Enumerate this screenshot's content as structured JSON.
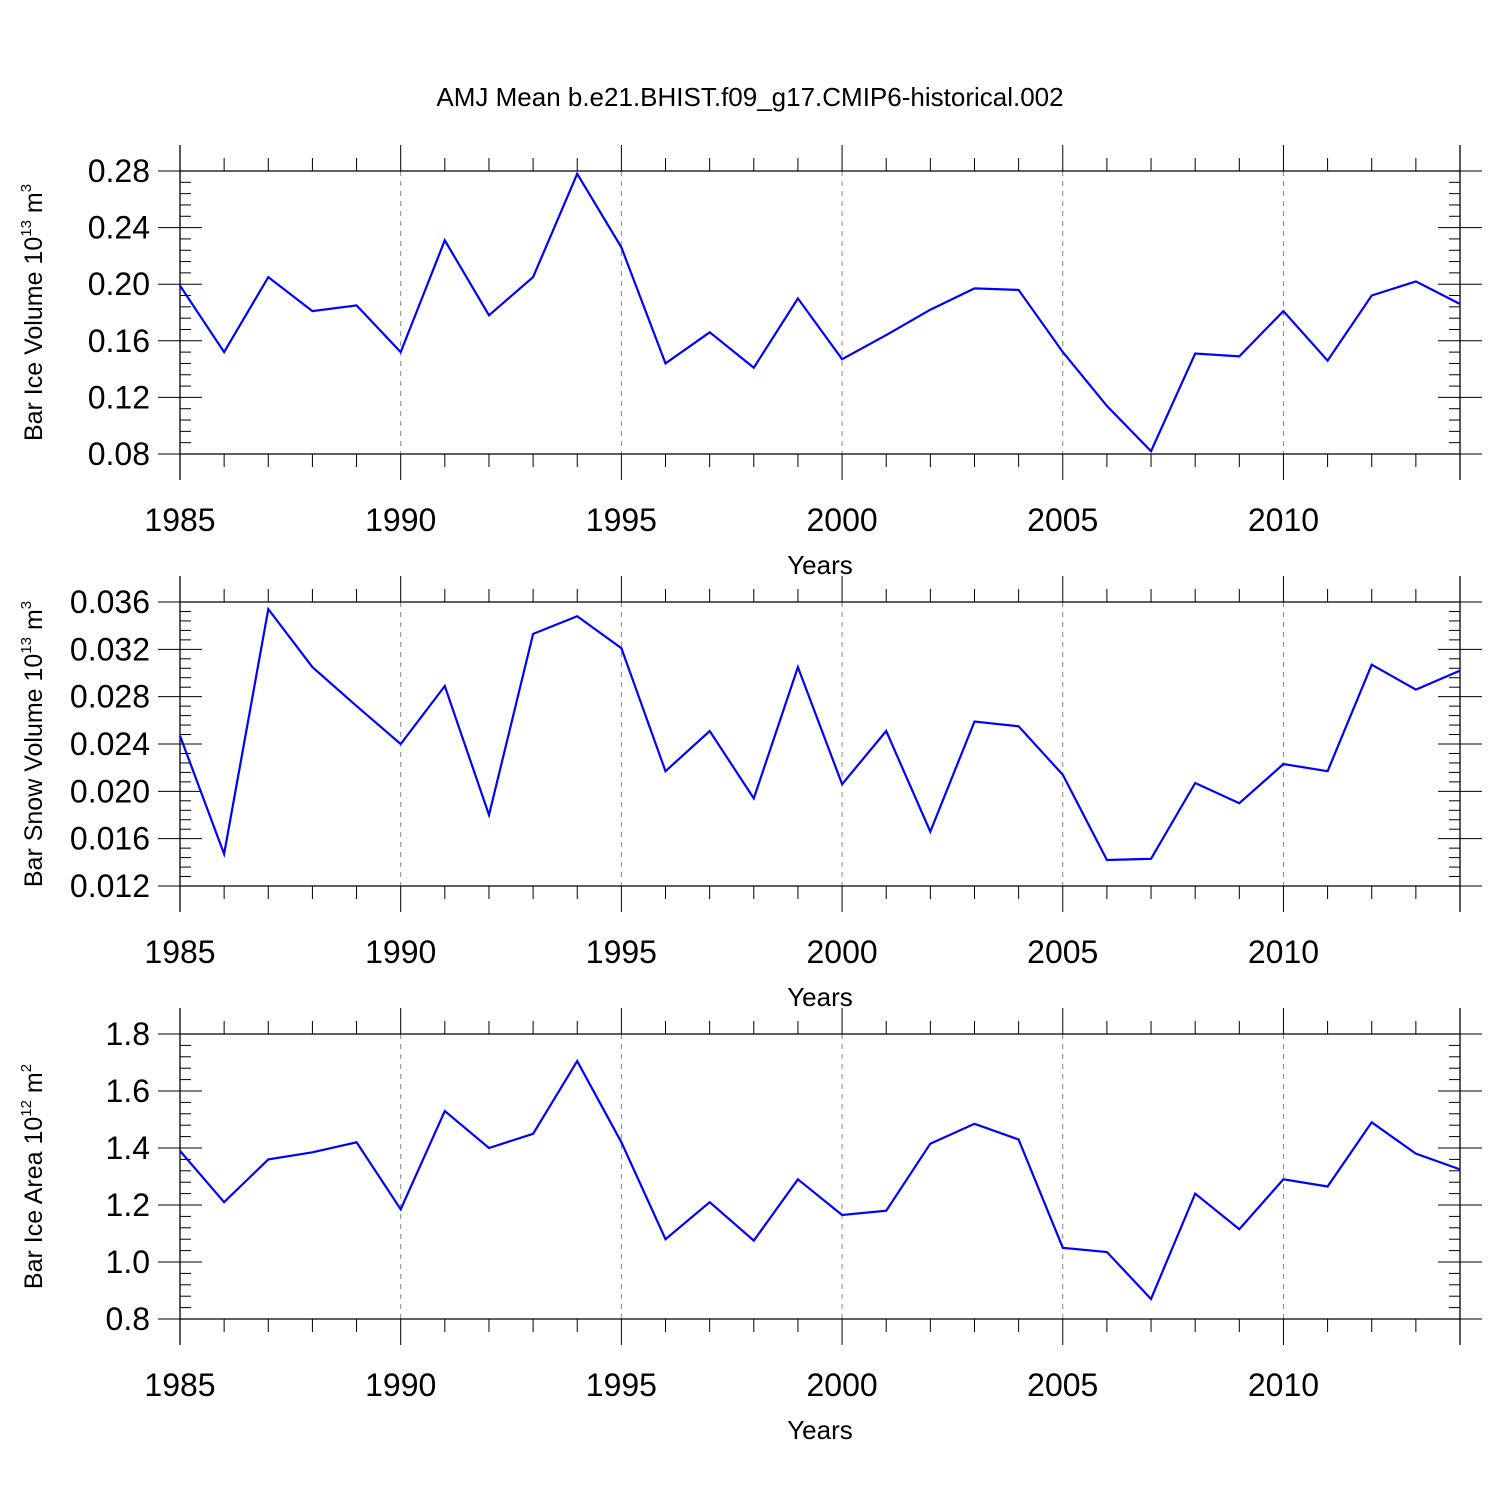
{
  "title": "AMJ Mean b.e21.BHIST.f09_g17.CMIP6-historical.002",
  "chart_data": [
    {
      "type": "line",
      "title": "",
      "xlabel": "Years",
      "ylabel_prefix": "Bar Ice Volume 10",
      "ylabel_exp": "13",
      "ylabel_unit": " m",
      "ylabel_unit_exp": "3",
      "xlim": [
        1985,
        2014
      ],
      "ylim": [
        0.08,
        0.28
      ],
      "xticks": [
        1985,
        1990,
        1995,
        2000,
        2005,
        2010
      ],
      "yticks": [
        "0.08",
        "0.12",
        "0.16",
        "0.20",
        "0.24",
        "0.28"
      ],
      "x": [
        1985,
        1986,
        1987,
        1988,
        1989,
        1990,
        1991,
        1992,
        1993,
        1994,
        1995,
        1996,
        1997,
        1998,
        1999,
        2000,
        2001,
        2002,
        2003,
        2004,
        2005,
        2006,
        2007,
        2008,
        2009,
        2010,
        2011,
        2012,
        2013,
        2014
      ],
      "series": [
        {
          "name": "Bar Ice Volume",
          "color": "#0000ff",
          "values": [
            0.199,
            0.152,
            0.205,
            0.181,
            0.185,
            0.152,
            0.231,
            0.178,
            0.205,
            0.278,
            0.226,
            0.144,
            0.166,
            0.141,
            0.19,
            0.147,
            0.164,
            0.182,
            0.197,
            0.196,
            0.152,
            0.114,
            0.082,
            0.151,
            0.149,
            0.181,
            0.146,
            0.192,
            0.202,
            0.186
          ]
        }
      ]
    },
    {
      "type": "line",
      "title": "",
      "xlabel": "Years",
      "ylabel_prefix": "Bar Snow Volume 10",
      "ylabel_exp": "13",
      "ylabel_unit": " m",
      "ylabel_unit_exp": "3",
      "xlim": [
        1985,
        2014
      ],
      "ylim": [
        0.012,
        0.036
      ],
      "xticks": [
        1985,
        1990,
        1995,
        2000,
        2005,
        2010
      ],
      "yticks": [
        "0.012",
        "0.016",
        "0.020",
        "0.024",
        "0.028",
        "0.032",
        "0.036"
      ],
      "x": [
        1985,
        1986,
        1987,
        1988,
        1989,
        1990,
        1991,
        1992,
        1993,
        1994,
        1995,
        1996,
        1997,
        1998,
        1999,
        2000,
        2001,
        2002,
        2003,
        2004,
        2005,
        2006,
        2007,
        2008,
        2009,
        2010,
        2011,
        2012,
        2013,
        2014
      ],
      "series": [
        {
          "name": "Bar Snow Volume",
          "color": "#0000ff",
          "values": [
            0.0247,
            0.0147,
            0.0354,
            0.0305,
            0.0272,
            0.024,
            0.0289,
            0.018,
            0.0333,
            0.0348,
            0.0321,
            0.0217,
            0.0251,
            0.0194,
            0.0305,
            0.0206,
            0.0251,
            0.0166,
            0.0259,
            0.0255,
            0.0214,
            0.0142,
            0.0143,
            0.0207,
            0.019,
            0.0223,
            0.0217,
            0.0307,
            0.0286,
            0.0302
          ]
        }
      ]
    },
    {
      "type": "line",
      "title": "",
      "xlabel": "Years",
      "ylabel_prefix": "Bar Ice Area 10",
      "ylabel_exp": "12",
      "ylabel_unit": " m",
      "ylabel_unit_exp": "2",
      "xlim": [
        1985,
        2014
      ],
      "ylim": [
        0.8,
        1.8
      ],
      "xticks": [
        1985,
        1990,
        1995,
        2000,
        2005,
        2010
      ],
      "yticks": [
        "0.8",
        "1.0",
        "1.2",
        "1.4",
        "1.6",
        "1.8"
      ],
      "x": [
        1985,
        1986,
        1987,
        1988,
        1989,
        1990,
        1991,
        1992,
        1993,
        1994,
        1995,
        1996,
        1997,
        1998,
        1999,
        2000,
        2001,
        2002,
        2003,
        2004,
        2005,
        2006,
        2007,
        2008,
        2009,
        2010,
        2011,
        2012,
        2013,
        2014
      ],
      "series": [
        {
          "name": "Bar Ice Area",
          "color": "#0000ff",
          "values": [
            1.39,
            1.21,
            1.36,
            1.385,
            1.42,
            1.185,
            1.53,
            1.4,
            1.45,
            1.705,
            1.42,
            1.08,
            1.21,
            1.075,
            1.29,
            1.165,
            1.18,
            1.415,
            1.485,
            1.43,
            1.05,
            1.035,
            0.87,
            1.24,
            1.115,
            1.29,
            1.265,
            1.49,
            1.38,
            1.325
          ]
        }
      ]
    }
  ]
}
